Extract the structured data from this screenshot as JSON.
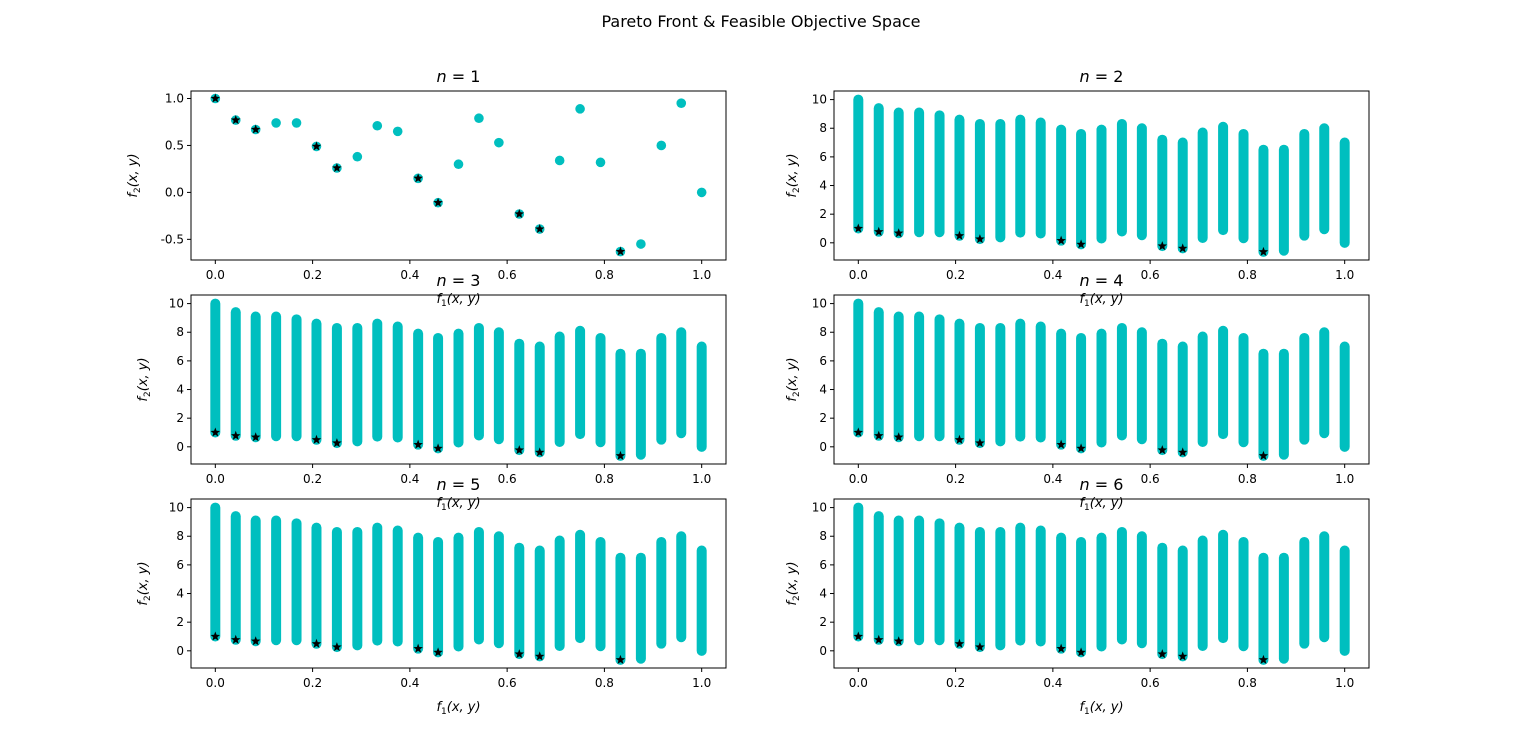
{
  "figure": {
    "suptitle": "Pareto Front & Feasible Objective Space"
  },
  "colors": {
    "feasible": "#00bfbf",
    "pareto": "#000000",
    "axes": "#000000",
    "background": "#ffffff"
  },
  "chart_data": [
    {
      "type": "scatter",
      "title": "n = 1",
      "xlabel": "f1(x, y)",
      "ylabel": "f2(x, y)",
      "xlim": [
        -0.05,
        1.05
      ],
      "ylim": [
        -0.72,
        1.08
      ],
      "xticks": [
        "0.0",
        "0.2",
        "0.4",
        "0.6",
        "0.8",
        "1.0"
      ],
      "yticks": [
        "-0.5",
        "0.0",
        "0.5",
        "1.0"
      ],
      "series": [
        {
          "name": "",
          "marker": "circle",
          "points": [
            [
              0.0,
              1.0
            ],
            [
              0.042,
              0.77
            ],
            [
              0.083,
              0.67
            ],
            [
              0.125,
              0.74
            ],
            [
              0.167,
              0.74
            ],
            [
              0.208,
              0.49
            ],
            [
              0.25,
              0.26
            ],
            [
              0.292,
              0.38
            ],
            [
              0.333,
              0.71
            ],
            [
              0.375,
              0.65
            ],
            [
              0.417,
              0.15
            ],
            [
              0.458,
              -0.11
            ],
            [
              0.5,
              0.3
            ],
            [
              0.542,
              0.79
            ],
            [
              0.583,
              0.53
            ],
            [
              0.625,
              -0.23
            ],
            [
              0.667,
              -0.39
            ],
            [
              0.708,
              0.34
            ],
            [
              0.75,
              0.89
            ],
            [
              0.792,
              0.32
            ],
            [
              0.833,
              -0.63
            ],
            [
              0.875,
              -0.55
            ],
            [
              0.917,
              0.5
            ],
            [
              0.958,
              0.95
            ],
            [
              1.0,
              0.0
            ]
          ]
        },
        {
          "name": "",
          "marker": "star",
          "points": [
            [
              0.0,
              1.0
            ],
            [
              0.042,
              0.77
            ],
            [
              0.083,
              0.67
            ],
            [
              0.208,
              0.49
            ],
            [
              0.25,
              0.26
            ],
            [
              0.417,
              0.15
            ],
            [
              0.458,
              -0.11
            ],
            [
              0.625,
              -0.23
            ],
            [
              0.667,
              -0.39
            ],
            [
              0.833,
              -0.63
            ]
          ]
        }
      ]
    },
    {
      "type": "scatter",
      "title": "n = 2",
      "xlabel": "f1(x, y)",
      "ylabel": "f2(x, y)",
      "xlim": [
        -0.05,
        1.05
      ],
      "ylim": [
        -1.2,
        10.6
      ],
      "xticks": [
        "0.0",
        "0.2",
        "0.4",
        "0.6",
        "0.8",
        "1.0"
      ],
      "yticks": [
        "0",
        "2",
        "4",
        "6",
        "8",
        "10"
      ],
      "series": [
        {
          "name": "",
          "marker": "circle-column",
          "x": [
            0.0,
            0.042,
            0.083,
            0.125,
            0.167,
            0.208,
            0.25,
            0.292,
            0.333,
            0.375,
            0.417,
            0.458,
            0.5,
            0.542,
            0.583,
            0.625,
            0.667,
            0.708,
            0.75,
            0.792,
            0.833,
            0.875,
            0.917,
            0.958,
            1.0
          ],
          "ymin": [
            1.0,
            0.77,
            0.67,
            0.74,
            0.74,
            0.49,
            0.26,
            0.38,
            0.71,
            0.65,
            0.15,
            -0.11,
            0.3,
            0.79,
            0.53,
            -0.23,
            -0.39,
            0.34,
            0.89,
            0.32,
            -0.63,
            -0.55,
            0.5,
            0.95,
            0.0
          ],
          "ymax": [
            10.0,
            9.4,
            9.1,
            9.1,
            8.9,
            8.6,
            8.3,
            8.3,
            8.6,
            8.4,
            7.9,
            7.6,
            7.9,
            8.3,
            8.0,
            7.2,
            7.0,
            7.7,
            8.1,
            7.6,
            6.5,
            6.5,
            7.6,
            8.0,
            7.0
          ]
        },
        {
          "name": "",
          "marker": "star",
          "points": [
            [
              0.0,
              1.0
            ],
            [
              0.042,
              0.77
            ],
            [
              0.083,
              0.67
            ],
            [
              0.208,
              0.49
            ],
            [
              0.25,
              0.26
            ],
            [
              0.417,
              0.15
            ],
            [
              0.458,
              -0.11
            ],
            [
              0.625,
              -0.23
            ],
            [
              0.667,
              -0.39
            ],
            [
              0.833,
              -0.63
            ]
          ]
        }
      ]
    },
    {
      "type": "scatter",
      "title": "n = 3",
      "xlabel": "f1(x, y)",
      "ylabel": "f2(x, y)",
      "xlim": [
        -0.05,
        1.05
      ],
      "ylim": [
        -1.2,
        10.6
      ],
      "xticks": [
        "0.0",
        "0.2",
        "0.4",
        "0.6",
        "0.8",
        "1.0"
      ],
      "yticks": [
        "0",
        "2",
        "4",
        "6",
        "8",
        "10"
      ],
      "series": [
        {
          "name": "",
          "marker": "circle-column",
          "x": [
            0.0,
            0.042,
            0.083,
            0.125,
            0.167,
            0.208,
            0.25,
            0.292,
            0.333,
            0.375,
            0.417,
            0.458,
            0.5,
            0.542,
            0.583,
            0.625,
            0.667,
            0.708,
            0.75,
            0.792,
            0.833,
            0.875,
            0.917,
            0.958,
            1.0
          ],
          "ymin": [
            1.0,
            0.77,
            0.67,
            0.74,
            0.74,
            0.49,
            0.26,
            0.38,
            0.71,
            0.65,
            0.15,
            -0.11,
            0.3,
            0.79,
            0.53,
            -0.23,
            -0.39,
            0.34,
            0.89,
            0.32,
            -0.63,
            -0.55,
            0.5,
            0.95,
            0.0
          ],
          "ymax": [
            10.0,
            9.4,
            9.1,
            9.1,
            8.9,
            8.6,
            8.3,
            8.3,
            8.6,
            8.4,
            7.9,
            7.6,
            7.9,
            8.3,
            8.0,
            7.2,
            7.0,
            7.7,
            8.1,
            7.6,
            6.5,
            6.5,
            7.6,
            8.0,
            7.0
          ]
        },
        {
          "name": "",
          "marker": "star",
          "points": [
            [
              0.0,
              1.0
            ],
            [
              0.042,
              0.77
            ],
            [
              0.083,
              0.67
            ],
            [
              0.208,
              0.49
            ],
            [
              0.25,
              0.26
            ],
            [
              0.417,
              0.15
            ],
            [
              0.458,
              -0.11
            ],
            [
              0.625,
              -0.23
            ],
            [
              0.667,
              -0.39
            ],
            [
              0.833,
              -0.63
            ]
          ]
        }
      ]
    },
    {
      "type": "scatter",
      "title": "n = 4",
      "xlabel": "f1(x, y)",
      "ylabel": "f2(x, y)",
      "xlim": [
        -0.05,
        1.05
      ],
      "ylim": [
        -1.2,
        10.6
      ],
      "xticks": [
        "0.0",
        "0.2",
        "0.4",
        "0.6",
        "0.8",
        "1.0"
      ],
      "yticks": [
        "0",
        "2",
        "4",
        "6",
        "8",
        "10"
      ],
      "series": [
        {
          "name": "",
          "marker": "circle-column",
          "x": [
            0.0,
            0.042,
            0.083,
            0.125,
            0.167,
            0.208,
            0.25,
            0.292,
            0.333,
            0.375,
            0.417,
            0.458,
            0.5,
            0.542,
            0.583,
            0.625,
            0.667,
            0.708,
            0.75,
            0.792,
            0.833,
            0.875,
            0.917,
            0.958,
            1.0
          ],
          "ymin": [
            1.0,
            0.77,
            0.67,
            0.74,
            0.74,
            0.49,
            0.26,
            0.38,
            0.71,
            0.65,
            0.15,
            -0.11,
            0.3,
            0.79,
            0.53,
            -0.23,
            -0.39,
            0.34,
            0.89,
            0.32,
            -0.63,
            -0.55,
            0.5,
            0.95,
            0.0
          ],
          "ymax": [
            10.0,
            9.4,
            9.1,
            9.1,
            8.9,
            8.6,
            8.3,
            8.3,
            8.6,
            8.4,
            7.9,
            7.6,
            7.9,
            8.3,
            8.0,
            7.2,
            7.0,
            7.7,
            8.1,
            7.6,
            6.5,
            6.5,
            7.6,
            8.0,
            7.0
          ]
        },
        {
          "name": "",
          "marker": "star",
          "points": [
            [
              0.0,
              1.0
            ],
            [
              0.042,
              0.77
            ],
            [
              0.083,
              0.67
            ],
            [
              0.208,
              0.49
            ],
            [
              0.25,
              0.26
            ],
            [
              0.417,
              0.15
            ],
            [
              0.458,
              -0.11
            ],
            [
              0.625,
              -0.23
            ],
            [
              0.667,
              -0.39
            ],
            [
              0.833,
              -0.63
            ]
          ]
        }
      ]
    },
    {
      "type": "scatter",
      "title": "n = 5",
      "xlabel": "f1(x, y)",
      "ylabel": "f2(x, y)",
      "xlim": [
        -0.05,
        1.05
      ],
      "ylim": [
        -1.2,
        10.6
      ],
      "xticks": [
        "0.0",
        "0.2",
        "0.4",
        "0.6",
        "0.8",
        "1.0"
      ],
      "yticks": [
        "0",
        "2",
        "4",
        "6",
        "8",
        "10"
      ],
      "series": [
        {
          "name": "",
          "marker": "circle-column",
          "x": [
            0.0,
            0.042,
            0.083,
            0.125,
            0.167,
            0.208,
            0.25,
            0.292,
            0.333,
            0.375,
            0.417,
            0.458,
            0.5,
            0.542,
            0.583,
            0.625,
            0.667,
            0.708,
            0.75,
            0.792,
            0.833,
            0.875,
            0.917,
            0.958,
            1.0
          ],
          "ymin": [
            1.0,
            0.77,
            0.67,
            0.74,
            0.74,
            0.49,
            0.26,
            0.38,
            0.71,
            0.65,
            0.15,
            -0.11,
            0.3,
            0.79,
            0.53,
            -0.23,
            -0.39,
            0.34,
            0.89,
            0.32,
            -0.63,
            -0.55,
            0.5,
            0.95,
            0.0
          ],
          "ymax": [
            10.0,
            9.4,
            9.1,
            9.1,
            8.9,
            8.6,
            8.3,
            8.3,
            8.6,
            8.4,
            7.9,
            7.6,
            7.9,
            8.3,
            8.0,
            7.2,
            7.0,
            7.7,
            8.1,
            7.6,
            6.5,
            6.5,
            7.6,
            8.0,
            7.0
          ]
        },
        {
          "name": "",
          "marker": "star",
          "points": [
            [
              0.0,
              1.0
            ],
            [
              0.042,
              0.77
            ],
            [
              0.083,
              0.67
            ],
            [
              0.208,
              0.49
            ],
            [
              0.25,
              0.26
            ],
            [
              0.417,
              0.15
            ],
            [
              0.458,
              -0.11
            ],
            [
              0.625,
              -0.23
            ],
            [
              0.667,
              -0.39
            ],
            [
              0.833,
              -0.63
            ]
          ]
        }
      ]
    },
    {
      "type": "scatter",
      "title": "n = 6",
      "xlabel": "f1(x, y)",
      "ylabel": "f2(x, y)",
      "xlim": [
        -0.05,
        1.05
      ],
      "ylim": [
        -1.2,
        10.6
      ],
      "xticks": [
        "0.0",
        "0.2",
        "0.4",
        "0.6",
        "0.8",
        "1.0"
      ],
      "yticks": [
        "0",
        "2",
        "4",
        "6",
        "8",
        "10"
      ],
      "series": [
        {
          "name": "",
          "marker": "circle-column",
          "x": [
            0.0,
            0.042,
            0.083,
            0.125,
            0.167,
            0.208,
            0.25,
            0.292,
            0.333,
            0.375,
            0.417,
            0.458,
            0.5,
            0.542,
            0.583,
            0.625,
            0.667,
            0.708,
            0.75,
            0.792,
            0.833,
            0.875,
            0.917,
            0.958,
            1.0
          ],
          "ymin": [
            1.0,
            0.77,
            0.67,
            0.74,
            0.74,
            0.49,
            0.26,
            0.38,
            0.71,
            0.65,
            0.15,
            -0.11,
            0.3,
            0.79,
            0.53,
            -0.23,
            -0.39,
            0.34,
            0.89,
            0.32,
            -0.63,
            -0.55,
            0.5,
            0.95,
            0.0
          ],
          "ymax": [
            10.0,
            9.4,
            9.1,
            9.1,
            8.9,
            8.6,
            8.3,
            8.3,
            8.6,
            8.4,
            7.9,
            7.6,
            7.9,
            8.3,
            8.0,
            7.2,
            7.0,
            7.7,
            8.1,
            7.6,
            6.5,
            6.5,
            7.6,
            8.0,
            7.0
          ]
        },
        {
          "name": "",
          "marker": "star",
          "points": [
            [
              0.0,
              1.0
            ],
            [
              0.042,
              0.77
            ],
            [
              0.083,
              0.67
            ],
            [
              0.208,
              0.49
            ],
            [
              0.25,
              0.26
            ],
            [
              0.417,
              0.15
            ],
            [
              0.458,
              -0.11
            ],
            [
              0.625,
              -0.23
            ],
            [
              0.667,
              -0.39
            ],
            [
              0.833,
              -0.63
            ]
          ]
        }
      ]
    }
  ]
}
